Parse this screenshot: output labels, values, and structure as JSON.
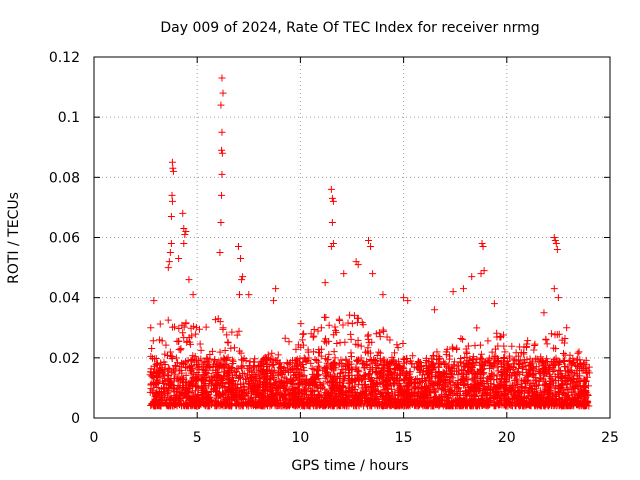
{
  "chart_data": {
    "type": "scatter",
    "title": "Day 009 of 2024, Rate Of TEC Index for receiver nrmg",
    "xlabel": "GPS time / hours",
    "ylabel": "ROTI / TECUs",
    "xlim": [
      0,
      25
    ],
    "ylim": [
      0,
      0.12
    ],
    "x_ticks": [
      0,
      5,
      10,
      15,
      20,
      25
    ],
    "x_tick_labels": [
      "0",
      "5",
      "10",
      "15",
      "20",
      "25"
    ],
    "y_ticks": [
      0,
      0.02,
      0.04,
      0.06,
      0.08,
      0.1,
      0.12
    ],
    "y_tick_labels": [
      "0",
      "0.02",
      "0.04",
      "0.06",
      "0.08",
      "0.1",
      "0.12"
    ],
    "grid": true,
    "marker": "plus",
    "color": "#ff0000",
    "data_x_range": [
      2.7,
      24.0
    ],
    "baseline_band": [
      0.004,
      0.02
    ],
    "series": [
      {
        "name": "ROTI",
        "points": [
          [
            3.6,
            0.05
          ],
          [
            3.65,
            0.052
          ],
          [
            3.7,
            0.055
          ],
          [
            3.75,
            0.058
          ],
          [
            3.8,
            0.085
          ],
          [
            3.82,
            0.083
          ],
          [
            3.85,
            0.082
          ],
          [
            3.78,
            0.074
          ],
          [
            3.8,
            0.072
          ],
          [
            3.75,
            0.067
          ],
          [
            4.1,
            0.053
          ],
          [
            4.3,
            0.068
          ],
          [
            4.35,
            0.063
          ],
          [
            4.4,
            0.061
          ],
          [
            4.35,
            0.058
          ],
          [
            4.45,
            0.062
          ],
          [
            4.6,
            0.046
          ],
          [
            4.8,
            0.041
          ],
          [
            6.2,
            0.113
          ],
          [
            6.25,
            0.108
          ],
          [
            6.15,
            0.104
          ],
          [
            6.2,
            0.095
          ],
          [
            6.18,
            0.089
          ],
          [
            6.22,
            0.088
          ],
          [
            6.2,
            0.081
          ],
          [
            6.18,
            0.074
          ],
          [
            6.15,
            0.065
          ],
          [
            6.1,
            0.055
          ],
          [
            7.0,
            0.057
          ],
          [
            7.1,
            0.053
          ],
          [
            7.2,
            0.047
          ],
          [
            7.15,
            0.046
          ],
          [
            7.05,
            0.041
          ],
          [
            7.5,
            0.041
          ],
          [
            8.8,
            0.043
          ],
          [
            8.7,
            0.039
          ],
          [
            11.5,
            0.076
          ],
          [
            11.55,
            0.073
          ],
          [
            11.6,
            0.072
          ],
          [
            11.55,
            0.065
          ],
          [
            11.6,
            0.058
          ],
          [
            11.5,
            0.057
          ],
          [
            11.2,
            0.045
          ],
          [
            12.1,
            0.048
          ],
          [
            12.7,
            0.052
          ],
          [
            12.8,
            0.051
          ],
          [
            13.3,
            0.059
          ],
          [
            13.4,
            0.057
          ],
          [
            13.5,
            0.048
          ],
          [
            14.0,
            0.041
          ],
          [
            15.0,
            0.04
          ],
          [
            15.2,
            0.039
          ],
          [
            16.5,
            0.036
          ],
          [
            17.4,
            0.042
          ],
          [
            17.9,
            0.043
          ],
          [
            18.3,
            0.047
          ],
          [
            18.8,
            0.058
          ],
          [
            18.85,
            0.057
          ],
          [
            18.9,
            0.049
          ],
          [
            18.75,
            0.048
          ],
          [
            19.4,
            0.038
          ],
          [
            22.3,
            0.06
          ],
          [
            22.35,
            0.059
          ],
          [
            22.4,
            0.058
          ],
          [
            22.45,
            0.056
          ],
          [
            22.3,
            0.043
          ],
          [
            22.5,
            0.04
          ],
          [
            21.8,
            0.035
          ],
          [
            22.9,
            0.03
          ],
          [
            23.5,
            0.022
          ],
          [
            24.0,
            0.015
          ],
          [
            2.75,
            0.03
          ],
          [
            2.9,
            0.039
          ]
        ]
      }
    ],
    "density_envelope": [
      [
        2.7,
        0.022
      ],
      [
        3.0,
        0.03
      ],
      [
        3.5,
        0.035
      ],
      [
        4.0,
        0.03
      ],
      [
        4.5,
        0.033
      ],
      [
        5.0,
        0.03
      ],
      [
        5.5,
        0.032
      ],
      [
        6.0,
        0.035
      ],
      [
        6.5,
        0.032
      ],
      [
        7.0,
        0.03
      ],
      [
        7.5,
        0.02
      ],
      [
        8.0,
        0.018
      ],
      [
        8.5,
        0.022
      ],
      [
        9.0,
        0.025
      ],
      [
        9.5,
        0.028
      ],
      [
        10.0,
        0.032
      ],
      [
        10.5,
        0.03
      ],
      [
        11.0,
        0.033
      ],
      [
        11.5,
        0.036
      ],
      [
        12.0,
        0.033
      ],
      [
        12.5,
        0.035
      ],
      [
        13.0,
        0.034
      ],
      [
        13.5,
        0.031
      ],
      [
        14.0,
        0.03
      ],
      [
        14.5,
        0.025
      ],
      [
        15.0,
        0.026
      ],
      [
        15.5,
        0.02
      ],
      [
        16.0,
        0.018
      ],
      [
        16.5,
        0.022
      ],
      [
        17.0,
        0.025
      ],
      [
        17.5,
        0.026
      ],
      [
        18.0,
        0.028
      ],
      [
        18.5,
        0.03
      ],
      [
        19.0,
        0.032
      ],
      [
        19.5,
        0.03
      ],
      [
        20.0,
        0.028
      ],
      [
        20.5,
        0.024
      ],
      [
        21.0,
        0.026
      ],
      [
        21.5,
        0.025
      ],
      [
        22.0,
        0.028
      ],
      [
        22.5,
        0.032
      ],
      [
        23.0,
        0.025
      ],
      [
        23.5,
        0.022
      ],
      [
        24.0,
        0.014
      ]
    ]
  }
}
